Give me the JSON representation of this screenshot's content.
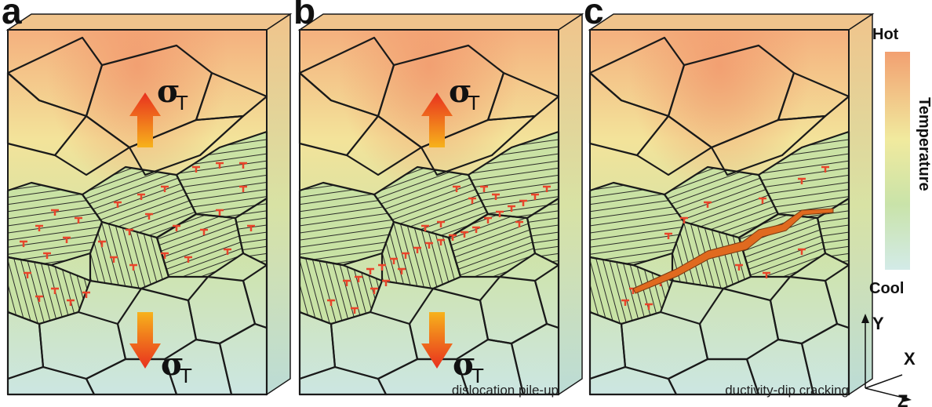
{
  "panels": [
    {
      "letter": "a",
      "caption": "",
      "mode": "strain"
    },
    {
      "letter": "b",
      "caption": "dislocation pile-up",
      "mode": "pileup"
    },
    {
      "letter": "c",
      "caption": "ductivity-dip cracking",
      "mode": "crack"
    }
  ],
  "stress": {
    "symbol": "σ",
    "subscript": "T"
  },
  "legend": {
    "hot": "Hot",
    "cool": "Cool",
    "title": "Temperature",
    "hot_color": "#f2a071",
    "mid_color": "#f1ea9e",
    "cool_color": "#d3ebe8"
  },
  "axes": {
    "y": "Y",
    "x": "X",
    "z": "Z"
  },
  "colors": {
    "hot": "#f4b07e",
    "warm": "#f3e39a",
    "mid": "#cfe3a7",
    "cool": "#c8e4e0",
    "dislocation": "#e8452b",
    "crack": "#e06a1f",
    "arrow_top": "#e8301e",
    "arrow_bottom": "#f7a21b"
  }
}
